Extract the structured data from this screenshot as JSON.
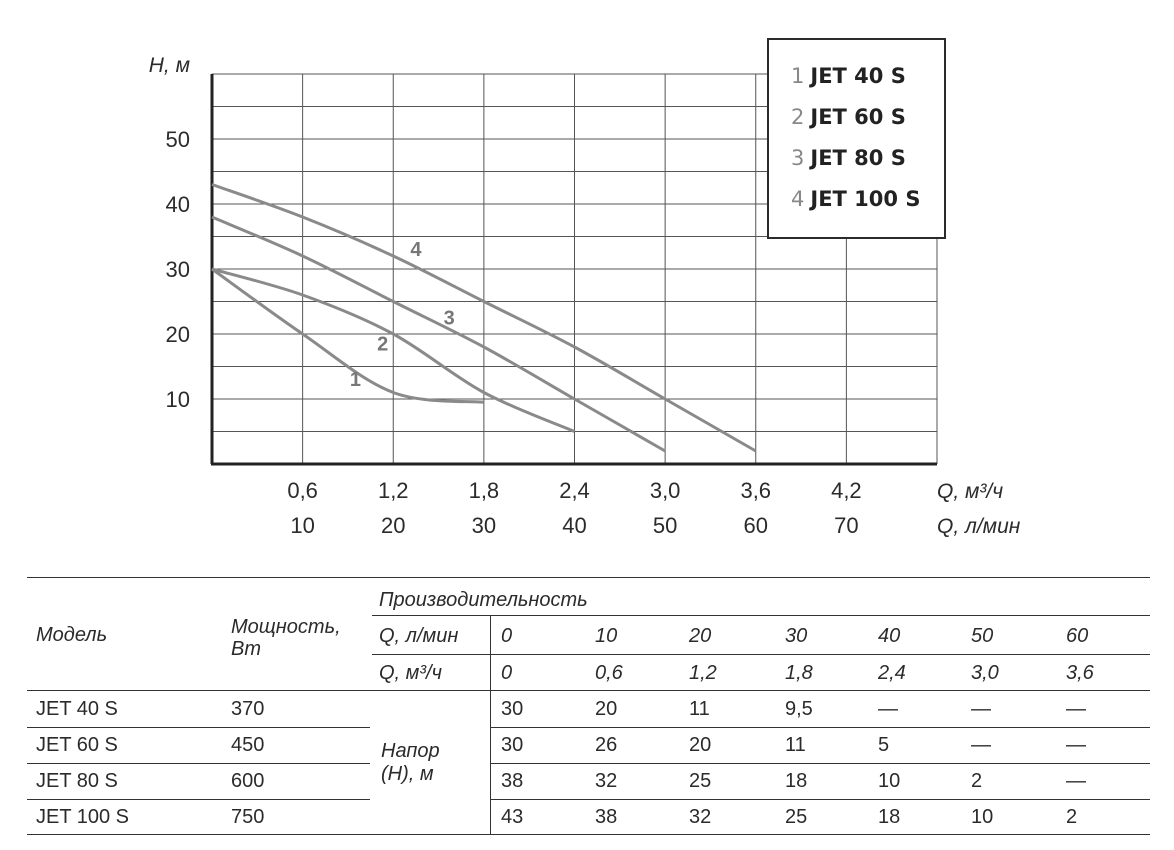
{
  "chart_data": {
    "type": "line",
    "ylabel": "H, м",
    "xlabel": "Q, м³/ч",
    "xlabel2": "Q, л/мин",
    "y_ticks": [
      "10",
      "20",
      "30",
      "40",
      "50"
    ],
    "x_ticks_m3h": [
      "0,6",
      "1,2",
      "1,8",
      "2,4",
      "3,0",
      "3,6",
      "4,2"
    ],
    "x_ticks_lmin": [
      "10",
      "20",
      "30",
      "40",
      "50",
      "60",
      "70"
    ],
    "xlim": [
      0,
      4.8
    ],
    "ylim": [
      0,
      60
    ],
    "grid": true,
    "legend_position": "top-right",
    "series": [
      {
        "name": "JET 40 S",
        "label": "1",
        "x": [
          0,
          0.6,
          1.2,
          1.8
        ],
        "y": [
          30,
          20,
          11,
          9.5
        ],
        "color": "#8a8a8a"
      },
      {
        "name": "JET 60 S",
        "label": "2",
        "x": [
          0,
          0.6,
          1.2,
          1.8,
          2.4
        ],
        "y": [
          30,
          26,
          20,
          11,
          5
        ],
        "color": "#8a8a8a"
      },
      {
        "name": "JET 80 S",
        "label": "3",
        "x": [
          0,
          0.6,
          1.2,
          1.8,
          2.4,
          3.0
        ],
        "y": [
          38,
          32,
          25,
          18,
          10,
          2
        ],
        "color": "#8a8a8a"
      },
      {
        "name": "JET 100 S",
        "label": "4",
        "x": [
          0,
          0.6,
          1.2,
          1.8,
          2.4,
          3.0,
          3.6
        ],
        "y": [
          43,
          38,
          32,
          25,
          18,
          10,
          2
        ],
        "color": "#8a8a8a"
      }
    ]
  },
  "legend": [
    {
      "num": "1",
      "name": "JET 40 S"
    },
    {
      "num": "2",
      "name": "JET 60 S"
    },
    {
      "num": "3",
      "name": "JET 80 S"
    },
    {
      "num": "4",
      "name": "JET 100 S"
    }
  ],
  "table": {
    "model_header": "Модель",
    "power_header_1": "Мощность,",
    "power_header_2": "Вт",
    "perf_header": "Производительность",
    "q_lmin_label": "Q, л/мин",
    "q_m3h_label": "Q, м³/ч",
    "q_lmin": [
      "0",
      "10",
      "20",
      "30",
      "40",
      "50",
      "60"
    ],
    "q_m3h": [
      "0",
      "0,6",
      "1,2",
      "1,8",
      "2,4",
      "3,0",
      "3,6"
    ],
    "head_label_1": "Напор",
    "head_label_2": "(Н), м",
    "rows": [
      {
        "model": "JET 40 S",
        "power": "370",
        "values": [
          "30",
          "20",
          "11",
          "9,5",
          "—",
          "—",
          "—"
        ]
      },
      {
        "model": "JET 60 S",
        "power": "450",
        "values": [
          "30",
          "26",
          "20",
          "11",
          "5",
          "—",
          "—"
        ]
      },
      {
        "model": "JET 80 S",
        "power": "600",
        "values": [
          "38",
          "32",
          "25",
          "18",
          "10",
          "2",
          "—"
        ]
      },
      {
        "model": "JET 100 S",
        "power": "750",
        "values": [
          "43",
          "38",
          "32",
          "25",
          "18",
          "10",
          "2"
        ]
      }
    ]
  }
}
